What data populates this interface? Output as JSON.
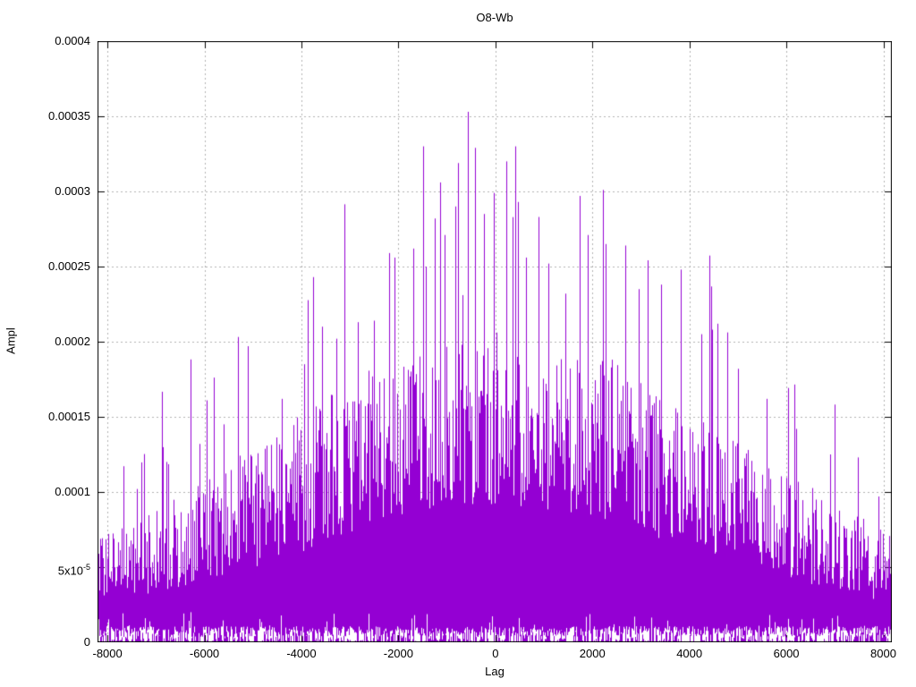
{
  "chart_data": {
    "type": "impulse-spikes",
    "title": "O8-Wb",
    "xlabel": "Lag",
    "ylabel": "Ampl",
    "xlim": [
      -8205,
      8175
    ],
    "ylim": [
      0,
      0.0004
    ],
    "grid": "dotted",
    "legend": "none",
    "background": "#ffffff",
    "series_color": "#9400d3",
    "grid_color": "#b0b0b0",
    "border_color": "#000000",
    "seed": 1234,
    "xticks": [
      {
        "v": -8000,
        "label": "-8000"
      },
      {
        "v": -6000,
        "label": "-6000"
      },
      {
        "v": -4000,
        "label": "-4000"
      },
      {
        "v": -2000,
        "label": "-2000"
      },
      {
        "v": 0,
        "label": "0"
      },
      {
        "v": 2000,
        "label": "2000"
      },
      {
        "v": 4000,
        "label": "4000"
      },
      {
        "v": 6000,
        "label": "6000"
      },
      {
        "v": 8000,
        "label": "8000"
      }
    ],
    "yticks": [
      {
        "v": 0,
        "label": "0"
      },
      {
        "v": 5e-05,
        "label": "5x10^-5"
      },
      {
        "v": 0.0001,
        "label": "0.0001"
      },
      {
        "v": 0.00015,
        "label": "0.00015"
      },
      {
        "v": 0.0002,
        "label": "0.0002"
      },
      {
        "v": 0.00025,
        "label": "0.00025"
      },
      {
        "v": 0.0003,
        "label": "0.0003"
      },
      {
        "v": 0.00035,
        "label": "0.00035"
      },
      {
        "v": 0.0004,
        "label": "0.0004"
      }
    ],
    "envelope_units": "amplitude x 1e-4, piecewise-linear vs lag",
    "envelope": {
      "lags": [
        -8205,
        -7500,
        -6500,
        -5500,
        -4500,
        -3500,
        -2500,
        -1500,
        -700,
        0,
        700,
        1500,
        2500,
        3500,
        4500,
        5500,
        6500,
        7500,
        8175
      ],
      "solid_top": [
        0.3,
        0.36,
        0.45,
        0.55,
        0.66,
        0.8,
        0.95,
        1.05,
        1.1,
        1.12,
        1.1,
        1.05,
        0.95,
        0.82,
        0.7,
        0.57,
        0.47,
        0.38,
        0.31
      ],
      "spike_top": [
        0.68,
        0.85,
        1.02,
        1.2,
        1.42,
        1.62,
        1.85,
        1.98,
        2.05,
        2.08,
        2.05,
        1.98,
        1.88,
        1.66,
        1.44,
        1.22,
        1.04,
        0.87,
        0.7
      ]
    },
    "peaks_units": "[lag, amplitude x 1e-4]",
    "peaks": [
      [
        -7400,
        1.02
      ],
      [
        -6780,
        1.2
      ],
      [
        -6100,
        1.32
      ],
      [
        -5600,
        1.45
      ],
      [
        -5100,
        1.97
      ],
      [
        -4400,
        1.62
      ],
      [
        -3950,
        1.85
      ],
      [
        -3760,
        2.43
      ],
      [
        -3580,
        2.1
      ],
      [
        -3280,
        2.02
      ],
      [
        -2840,
        2.13
      ],
      [
        -2497,
        2.14
      ],
      [
        -2184,
        2.59
      ],
      [
        -2074,
        2.56
      ],
      [
        -1686,
        2.62
      ],
      [
        -1430,
        2.5
      ],
      [
        -1244,
        2.82
      ],
      [
        -1133,
        3.06
      ],
      [
        -1041,
        2.71
      ],
      [
        -830,
        2.9
      ],
      [
        -673,
        2.31
      ],
      [
        -562,
        3.53
      ],
      [
        -415,
        3.29
      ],
      [
        -240,
        2.85
      ],
      [
        -28,
        2.99
      ],
      [
        230,
        3.2
      ],
      [
        470,
        2.93
      ],
      [
        636,
        2.56
      ],
      [
        894,
        2.83
      ],
      [
        1100,
        2.52
      ],
      [
        1440,
        2.32
      ],
      [
        1742,
        2.97
      ],
      [
        1907,
        2.71
      ],
      [
        2221,
        3.01
      ],
      [
        2276,
        2.65
      ],
      [
        2681,
        2.64
      ],
      [
        2950,
        2.35
      ],
      [
        3419,
        2.38
      ],
      [
        3824,
        2.48
      ],
      [
        4250,
        2.05
      ],
      [
        4470,
        2.08
      ],
      [
        4580,
        2.12
      ],
      [
        5000,
        1.82
      ],
      [
        5600,
        1.62
      ],
      [
        6200,
        1.42
      ],
      [
        6900,
        1.25
      ],
      [
        7480,
        1.23
      ],
      [
        7900,
        0.97
      ]
    ]
  }
}
